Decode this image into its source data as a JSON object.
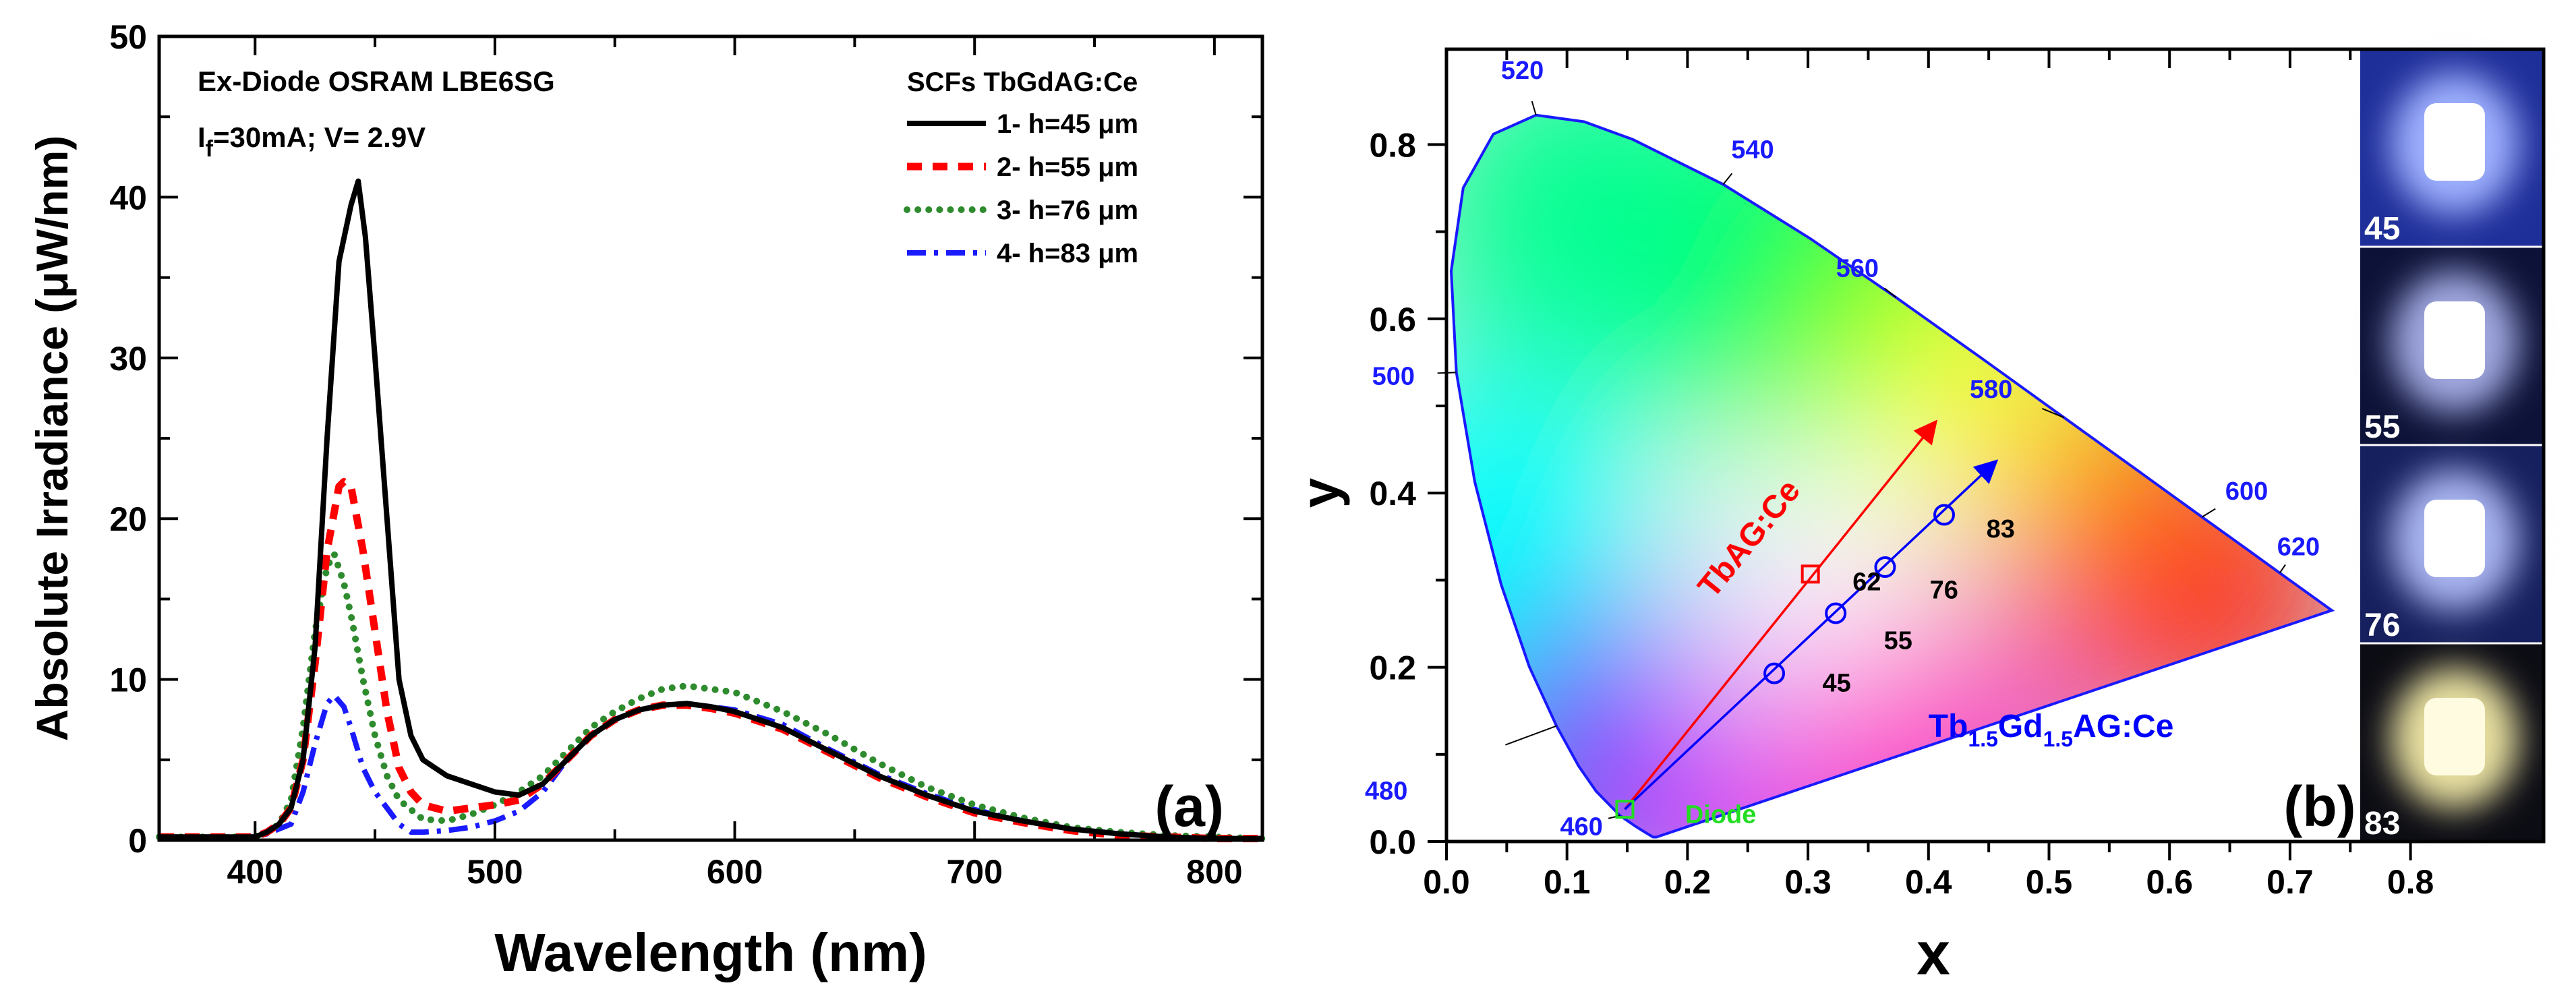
{
  "chart_data": [
    {
      "type": "line",
      "panel_label": "(a)",
      "xlabel": "Wavelength (nm)",
      "ylabel": "Absolute Irradiance (μW/nm)",
      "xlim": [
        360,
        820
      ],
      "ylim": [
        0,
        50
      ],
      "xticks": [
        400,
        500,
        600,
        700,
        800
      ],
      "yticks": [
        0,
        10,
        20,
        30,
        40,
        50
      ],
      "grid": false,
      "annotation_line1": "Ex-Diode OSRAM LBE6SG",
      "annotation_line2": {
        "main": "I",
        "sub": "f",
        "rest": "=30mA; V= 2.9V"
      },
      "legend_title": "SCFs TbGdAG:Ce",
      "legend_position": "top-right",
      "series": [
        {
          "name": "1- h=45 μm",
          "color": "#000000",
          "style": "solid",
          "x": [
            360,
            380,
            400,
            405,
            410,
            415,
            420,
            425,
            430,
            435,
            440,
            443,
            446,
            450,
            455,
            460,
            465,
            470,
            480,
            490,
            500,
            510,
            520,
            530,
            540,
            550,
            560,
            570,
            580,
            590,
            600,
            620,
            640,
            660,
            680,
            700,
            720,
            740,
            760,
            780,
            800,
            820
          ],
          "y": [
            0.2,
            0.2,
            0.2,
            0.5,
            1,
            2,
            5,
            12,
            25,
            36,
            39.5,
            41,
            37.5,
            30,
            20,
            10,
            6.5,
            5,
            4,
            3.5,
            3,
            2.8,
            3.5,
            5,
            6.5,
            7.5,
            8.1,
            8.4,
            8.5,
            8.3,
            8,
            7,
            5.5,
            4,
            2.8,
            1.8,
            1.2,
            0.7,
            0.4,
            0.2,
            0.1,
            0.1
          ]
        },
        {
          "name": "2- h=55 μm",
          "color": "#ff0000",
          "style": "dash",
          "x": [
            360,
            380,
            400,
            405,
            410,
            415,
            420,
            425,
            430,
            435,
            437,
            440,
            445,
            450,
            455,
            460,
            465,
            470,
            480,
            490,
            500,
            510,
            520,
            530,
            540,
            550,
            560,
            570,
            580,
            590,
            600,
            620,
            640,
            660,
            680,
            700,
            720,
            740,
            760,
            780,
            800,
            820
          ],
          "y": [
            0.2,
            0.2,
            0.2,
            0.5,
            1,
            2,
            5,
            11,
            18,
            22,
            22.3,
            22,
            18,
            13,
            8,
            4.5,
            3,
            2.2,
            1.8,
            2,
            2.2,
            2.5,
            3.5,
            5,
            6.5,
            7.5,
            8.1,
            8.4,
            8.4,
            8.2,
            7.9,
            6.9,
            5.4,
            3.9,
            2.7,
            1.7,
            1.1,
            0.6,
            0.3,
            0.2,
            0.1,
            0.1
          ]
        },
        {
          "name": "3- h=76 μm",
          "color": "#2e8b2e",
          "style": "dot",
          "x": [
            360,
            380,
            400,
            405,
            410,
            415,
            420,
            425,
            430,
            433,
            437,
            440,
            445,
            450,
            455,
            460,
            470,
            480,
            490,
            500,
            510,
            520,
            530,
            540,
            550,
            560,
            570,
            580,
            590,
            600,
            620,
            640,
            660,
            680,
            700,
            720,
            740,
            760,
            780,
            800,
            820
          ],
          "y": [
            0.2,
            0.2,
            0.2,
            0.5,
            1,
            2.5,
            7,
            13,
            17,
            17.8,
            16,
            14,
            10,
            6.5,
            4,
            2.5,
            1.3,
            1.2,
            1.6,
            2.2,
            3,
            4,
            5.5,
            7,
            8,
            8.8,
            9.4,
            9.6,
            9.4,
            9.2,
            8,
            6.5,
            4.8,
            3.3,
            2.2,
            1.4,
            0.8,
            0.5,
            0.3,
            0.2,
            0.1
          ]
        },
        {
          "name": "4- h=83 μm",
          "color": "#1a1aff",
          "style": "dashdot",
          "x": [
            360,
            380,
            400,
            405,
            410,
            415,
            420,
            425,
            430,
            433,
            437,
            440,
            445,
            450,
            455,
            460,
            465,
            470,
            480,
            490,
            500,
            510,
            520,
            530,
            540,
            550,
            560,
            570,
            580,
            590,
            600,
            620,
            640,
            660,
            680,
            700,
            720,
            740,
            760,
            780,
            800,
            820
          ],
          "y": [
            0.2,
            0.2,
            0.2,
            0.4,
            0.7,
            1,
            3,
            6,
            8.5,
            9,
            8.3,
            7,
            4.5,
            3,
            2,
            1,
            0.5,
            0.5,
            0.6,
            0.8,
            1.2,
            1.8,
            3,
            5,
            6.5,
            7.5,
            8.1,
            8.4,
            8.5,
            8.3,
            8.1,
            7.2,
            5.6,
            4.1,
            2.9,
            1.9,
            1.2,
            0.7,
            0.4,
            0.2,
            0.1,
            0.1
          ]
        }
      ]
    },
    {
      "type": "scatter",
      "panel_label": "(b)",
      "xlabel": "x",
      "ylabel": "y",
      "xlim": [
        0,
        0.9
      ],
      "ylim": [
        0,
        0.9
      ],
      "xticks": [
        "0.0",
        "0.1",
        "0.2",
        "0.3",
        "0.4",
        "0.5",
        "0.6",
        "0.7",
        "0.8"
      ],
      "yticks": [
        "0.0",
        "0.2",
        "0.4",
        "0.6",
        "0.8"
      ],
      "locus_wavelength_labels": [
        "460",
        "480",
        "500",
        "520",
        "540",
        "560",
        "580",
        "600",
        "620"
      ],
      "points": [
        {
          "label": "45",
          "x": 0.272,
          "y": 0.193,
          "marker": "circle",
          "color": "#0000ff"
        },
        {
          "label": "55",
          "x": 0.323,
          "y": 0.262,
          "marker": "circle",
          "color": "#0000ff"
        },
        {
          "label": "76",
          "x": 0.364,
          "y": 0.315,
          "marker": "circle",
          "color": "#0000ff"
        },
        {
          "label": "83",
          "x": 0.413,
          "y": 0.375,
          "marker": "circle",
          "color": "#0000ff"
        },
        {
          "label": "62",
          "x": 0.302,
          "y": 0.307,
          "marker": "square",
          "color": "#ff0000"
        },
        {
          "label": "Diode",
          "x": 0.148,
          "y": 0.037,
          "marker": "square",
          "color": "#22dd22"
        }
      ],
      "arrows": [
        {
          "label": "TbAG:Ce",
          "color": "#ff0000",
          "from": [
            0.148,
            0.037
          ],
          "to": [
            0.405,
            0.48
          ]
        },
        {
          "label": {
            "a": "Tb",
            "s1": "1.5",
            "b": "Gd",
            "s2": "1.5",
            "c": "AG:Ce"
          },
          "color": "#0000ff",
          "from": [
            0.148,
            0.037
          ],
          "to": [
            0.455,
            0.435
          ]
        }
      ],
      "photos": [
        "45",
        "55",
        "76",
        "83"
      ]
    }
  ]
}
